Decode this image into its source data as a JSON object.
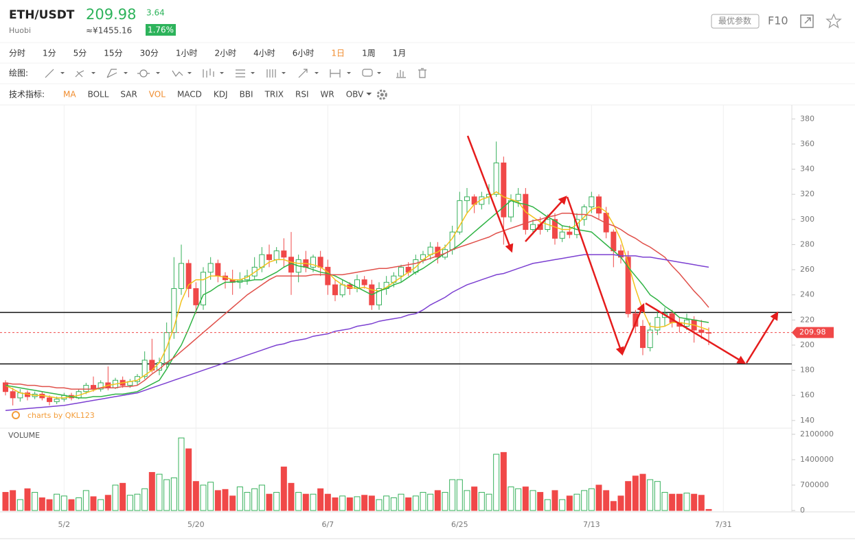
{
  "header": {
    "symbol": "ETH/USDT",
    "price": "209.98",
    "change": "3.64",
    "exchange": "Huobi",
    "cny": "≈¥1455.16",
    "change_pct": "1.76%",
    "buttons": [
      "最优参数",
      "F10"
    ]
  },
  "intervals": [
    {
      "label": "分时",
      "active": false
    },
    {
      "label": "1分",
      "active": false
    },
    {
      "label": "5分",
      "active": false
    },
    {
      "label": "15分",
      "active": false
    },
    {
      "label": "30分",
      "active": false
    },
    {
      "label": "1小时",
      "active": false
    },
    {
      "label": "2小时",
      "active": false
    },
    {
      "label": "4小时",
      "active": false
    },
    {
      "label": "6小时",
      "active": false
    },
    {
      "label": "1日",
      "active": true
    },
    {
      "label": "1周",
      "active": false
    },
    {
      "label": "1月",
      "active": false
    }
  ],
  "toolbar": {
    "drawing_label": "绘图:",
    "indicator_label": "技术指标:"
  },
  "indicators": [
    {
      "label": "MA",
      "active": true
    },
    {
      "label": "BOLL",
      "active": false
    },
    {
      "label": "SAR",
      "active": false
    },
    {
      "label": "VOL",
      "active": true
    },
    {
      "label": "MACD",
      "active": false
    },
    {
      "label": "KDJ",
      "active": false
    },
    {
      "label": "BBI",
      "active": false
    },
    {
      "label": "TRIX",
      "active": false
    },
    {
      "label": "RSI",
      "active": false
    },
    {
      "label": "WR",
      "active": false
    },
    {
      "label": "OBV",
      "active": false
    }
  ],
  "chart_data": {
    "type": "candlestick",
    "watermark": "charts by QKL123",
    "volume_label": "VOLUME",
    "up_color": "#35b05a",
    "down_color": "#f04848",
    "categories": [
      null,
      null,
      null,
      null,
      null,
      null,
      null,
      null,
      "5/2",
      null,
      null,
      null,
      null,
      null,
      null,
      null,
      null,
      null,
      null,
      null,
      null,
      null,
      null,
      null,
      null,
      null,
      "5/20",
      null,
      null,
      null,
      null,
      null,
      null,
      null,
      null,
      null,
      null,
      null,
      null,
      null,
      null,
      null,
      null,
      null,
      "6/7",
      null,
      null,
      null,
      null,
      null,
      null,
      null,
      null,
      null,
      null,
      null,
      null,
      null,
      null,
      null,
      null,
      null,
      "6/25",
      null,
      null,
      null,
      null,
      null,
      null,
      null,
      null,
      null,
      null,
      null,
      null,
      null,
      null,
      null,
      null,
      null,
      "7/13",
      null,
      null,
      null,
      null,
      null,
      null,
      null,
      null,
      null,
      null,
      null,
      null,
      null,
      null,
      null,
      null,
      null,
      "7/31"
    ],
    "open": [
      170,
      163,
      158,
      162,
      159,
      161,
      158,
      155,
      157,
      160,
      158,
      163,
      168,
      165,
      170,
      166,
      172,
      168,
      171,
      175,
      188,
      180,
      186,
      210,
      245,
      265,
      245,
      232,
      258,
      265,
      255,
      252,
      250,
      252,
      255,
      262,
      272,
      268,
      275,
      270,
      258,
      268,
      262,
      270,
      262,
      248,
      240,
      248,
      245,
      252,
      248,
      232,
      245,
      250,
      255,
      262,
      258,
      268,
      272,
      278,
      270,
      276,
      290,
      315,
      318,
      312,
      318,
      320,
      345,
      302,
      315,
      320,
      292,
      296,
      292,
      300,
      285,
      290,
      288,
      300,
      310,
      318,
      305,
      290,
      275,
      270,
      225,
      215,
      198,
      212,
      222,
      225,
      218,
      215,
      220,
      212,
      210,
      null,
      null
    ],
    "close": [
      163,
      158,
      162,
      159,
      161,
      158,
      155,
      157,
      160,
      158,
      163,
      168,
      165,
      170,
      166,
      172,
      168,
      171,
      175,
      188,
      180,
      186,
      210,
      245,
      265,
      245,
      232,
      258,
      265,
      255,
      252,
      250,
      252,
      255,
      262,
      272,
      268,
      275,
      270,
      258,
      268,
      262,
      270,
      262,
      248,
      240,
      248,
      245,
      252,
      248,
      232,
      245,
      250,
      255,
      262,
      258,
      268,
      272,
      278,
      270,
      276,
      290,
      315,
      318,
      312,
      318,
      320,
      345,
      302,
      315,
      320,
      292,
      296,
      292,
      300,
      285,
      290,
      288,
      300,
      310,
      318,
      305,
      290,
      275,
      270,
      225,
      215,
      198,
      212,
      222,
      225,
      218,
      215,
      220,
      212,
      210,
      209.98,
      null,
      null
    ],
    "high": [
      172,
      166,
      165,
      164,
      163,
      163,
      160,
      159,
      162,
      162,
      165,
      170,
      175,
      172,
      183,
      174,
      175,
      173,
      177,
      195,
      205,
      190,
      218,
      270,
      280,
      268,
      250,
      262,
      270,
      268,
      258,
      260,
      258,
      260,
      270,
      278,
      280,
      278,
      285,
      290,
      272,
      275,
      272,
      275,
      268,
      252,
      252,
      250,
      256,
      255,
      252,
      250,
      255,
      258,
      264,
      266,
      272,
      275,
      282,
      282,
      280,
      295,
      322,
      325,
      320,
      322,
      328,
      362,
      350,
      320,
      325,
      325,
      300,
      302,
      304,
      305,
      295,
      295,
      305,
      312,
      322,
      320,
      310,
      292,
      280,
      275,
      228,
      220,
      218,
      228,
      230,
      228,
      222,
      225,
      223,
      220,
      214,
      null,
      null
    ],
    "low": [
      160,
      152,
      155,
      156,
      157,
      156,
      152,
      153,
      155,
      156,
      157,
      161,
      163,
      163,
      164,
      165,
      166,
      166,
      168,
      173,
      178,
      176,
      182,
      205,
      240,
      238,
      225,
      228,
      252,
      250,
      245,
      240,
      245,
      248,
      252,
      258,
      262,
      265,
      262,
      240,
      250,
      258,
      258,
      255,
      240,
      235,
      238,
      240,
      242,
      245,
      228,
      228,
      240,
      246,
      250,
      255,
      256,
      265,
      268,
      265,
      268,
      272,
      288,
      305,
      305,
      308,
      312,
      318,
      280,
      298,
      310,
      288,
      288,
      288,
      290,
      280,
      282,
      285,
      285,
      295,
      305,
      300,
      285,
      262,
      265,
      222,
      210,
      192,
      195,
      208,
      215,
      214,
      210,
      212,
      202,
      205,
      200,
      null,
      null
    ],
    "volume": [
      500000,
      550000,
      300000,
      600000,
      500000,
      350000,
      300000,
      450000,
      400000,
      300000,
      350000,
      550000,
      380000,
      300000,
      420000,
      700000,
      750000,
      420000,
      450000,
      600000,
      1050000,
      1000000,
      850000,
      900000,
      2000000,
      1700000,
      800000,
      700000,
      780000,
      550000,
      580000,
      400000,
      650000,
      500000,
      600000,
      700000,
      450000,
      500000,
      1200000,
      750000,
      500000,
      450000,
      450000,
      600000,
      450000,
      350000,
      400000,
      350000,
      380000,
      420000,
      400000,
      300000,
      400000,
      350000,
      450000,
      350000,
      400000,
      500000,
      450000,
      550000,
      500000,
      850000,
      850000,
      550000,
      650000,
      500000,
      450000,
      1550000,
      1600000,
      650000,
      600000,
      650000,
      550000,
      500000,
      300000,
      550000,
      300000,
      400000,
      450000,
      550000,
      600000,
      700000,
      550000,
      250000,
      400000,
      800000,
      950000,
      1000000,
      850000,
      800000,
      500000,
      450000,
      450000,
      480000,
      450000,
      420000,
      30000,
      null,
      null
    ],
    "series": [
      {
        "color": "#f2c21b",
        "values": [
          168,
          165,
          162,
          161,
          160,
          160,
          159,
          158,
          158,
          159,
          160,
          162,
          164,
          166,
          168,
          169,
          170,
          171,
          172,
          176,
          180,
          186,
          198,
          214,
          235,
          248,
          252,
          252,
          255,
          255,
          254,
          252,
          252,
          254,
          258,
          262,
          266,
          268,
          268,
          266,
          265,
          265,
          264,
          262,
          258,
          252,
          248,
          246,
          245,
          246,
          244,
          243,
          246,
          250,
          254,
          258,
          262,
          268,
          272,
          274,
          278,
          285,
          295,
          305,
          312,
          316,
          318,
          322,
          318,
          316,
          314,
          306,
          302,
          298,
          296,
          294,
          292,
          292,
          296,
          302,
          308,
          310,
          306,
          296,
          284,
          265,
          245,
          228,
          215,
          214,
          215,
          218,
          218,
          217,
          216,
          214,
          212,
          null,
          null
        ]
      },
      {
        "color": "#2fb344",
        "values": [
          168,
          167,
          166,
          165,
          164,
          163,
          162,
          161,
          160,
          159,
          158,
          158,
          159,
          159,
          160,
          161,
          161,
          162,
          163,
          166,
          169,
          172,
          181,
          191,
          200,
          213,
          227,
          240,
          243,
          247,
          250,
          250,
          251,
          251,
          252,
          252,
          255,
          258,
          262,
          265,
          263,
          262,
          260,
          258,
          257,
          255,
          252,
          249,
          246,
          243,
          240,
          243,
          245,
          248,
          250,
          254,
          258,
          261,
          265,
          269,
          273,
          276,
          280,
          285,
          290,
          295,
          300,
          305,
          310,
          315,
          313,
          312,
          310,
          306,
          302,
          299,
          295,
          294,
          292,
          291,
          290,
          285,
          280,
          275,
          270,
          262,
          255,
          248,
          240,
          236,
          231,
          227,
          222,
          221,
          220,
          219,
          218,
          null,
          null
        ]
      },
      {
        "color": "#e0504a",
        "values": [
          170,
          169,
          169,
          168,
          168,
          167,
          167,
          166,
          166,
          165,
          165,
          165,
          165,
          166,
          166,
          166,
          167,
          167,
          168,
          172,
          177,
          181,
          186,
          190,
          195,
          200,
          205,
          210,
          215,
          220,
          225,
          230,
          235,
          240,
          244,
          248,
          252,
          255,
          255,
          255,
          255,
          255,
          256,
          256,
          256,
          256,
          256,
          257,
          258,
          259,
          260,
          261,
          261,
          262,
          263,
          264,
          265,
          267,
          269,
          271,
          273,
          276,
          278,
          280,
          282,
          284,
          286,
          289,
          291,
          293,
          295,
          297,
          299,
          300,
          302,
          303,
          305,
          305,
          304,
          304,
          303,
          300,
          297,
          295,
          292,
          288,
          285,
          281,
          278,
          274,
          270,
          263,
          257,
          250,
          243,
          237,
          230,
          null,
          null
        ]
      },
      {
        "color": "#7b3fd1",
        "values": [
          148,
          148.5,
          149,
          149.5,
          150,
          150.5,
          151,
          151.5,
          152,
          153,
          154,
          155,
          156,
          157,
          158,
          159,
          160,
          161,
          162,
          164,
          166,
          168,
          170,
          172,
          174,
          176,
          178,
          180,
          182,
          184,
          186,
          188,
          190,
          192,
          194,
          196,
          198,
          200,
          201,
          203,
          204,
          205,
          207,
          208,
          209,
          211,
          212,
          213,
          215,
          216,
          217,
          219,
          220,
          221,
          222,
          224,
          225,
          228,
          232,
          235,
          238,
          242,
          245,
          248,
          250,
          252,
          254,
          256,
          257,
          259,
          261,
          263,
          265,
          266,
          267,
          268,
          269,
          270,
          271,
          272,
          272,
          272,
          272,
          272,
          271,
          271,
          271,
          270,
          270,
          269,
          268,
          267,
          266,
          265,
          264,
          263,
          262,
          null,
          null
        ]
      }
    ],
    "last_price": 209.98,
    "last_price_color": "#f04848",
    "hlines": [
      226,
      185
    ],
    "ylim": [
      135,
      390
    ],
    "yticks": [
      140,
      160,
      180,
      200,
      220,
      240,
      260,
      280,
      300,
      320,
      340,
      360,
      380
    ],
    "vlim": [
      0,
      2250000
    ],
    "vticks": [
      0,
      700000,
      1400000,
      2100000
    ]
  }
}
